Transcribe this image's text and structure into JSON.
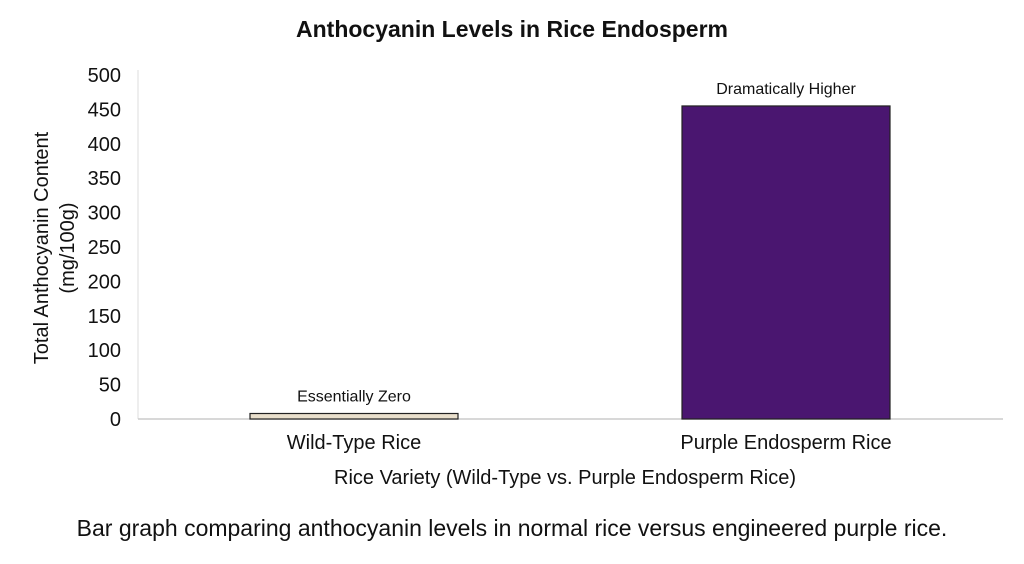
{
  "caption": "Bar graph comparing anthocyanin levels in normal rice versus engineered purple rice.",
  "chart_data": {
    "type": "bar",
    "title": "Anthocyanin Levels in Rice Endosperm",
    "xlabel": "Rice Variety (Wild-Type vs. Purple Endosperm Rice)",
    "ylabel_line1": "Total Anthocyanin Content",
    "ylabel_line2": "(mg/100g)",
    "ylim": [
      0,
      500
    ],
    "yticks": [
      0,
      50,
      100,
      150,
      200,
      250,
      300,
      350,
      400,
      450,
      500
    ],
    "categories": [
      "Wild-Type Rice",
      "Purple Endosperm Rice"
    ],
    "values": [
      8,
      455
    ],
    "annotations": [
      "Essentially Zero",
      "Dramatically Higher"
    ],
    "colors": [
      "#e9dfcc",
      "#4a1670"
    ],
    "grid": false
  }
}
